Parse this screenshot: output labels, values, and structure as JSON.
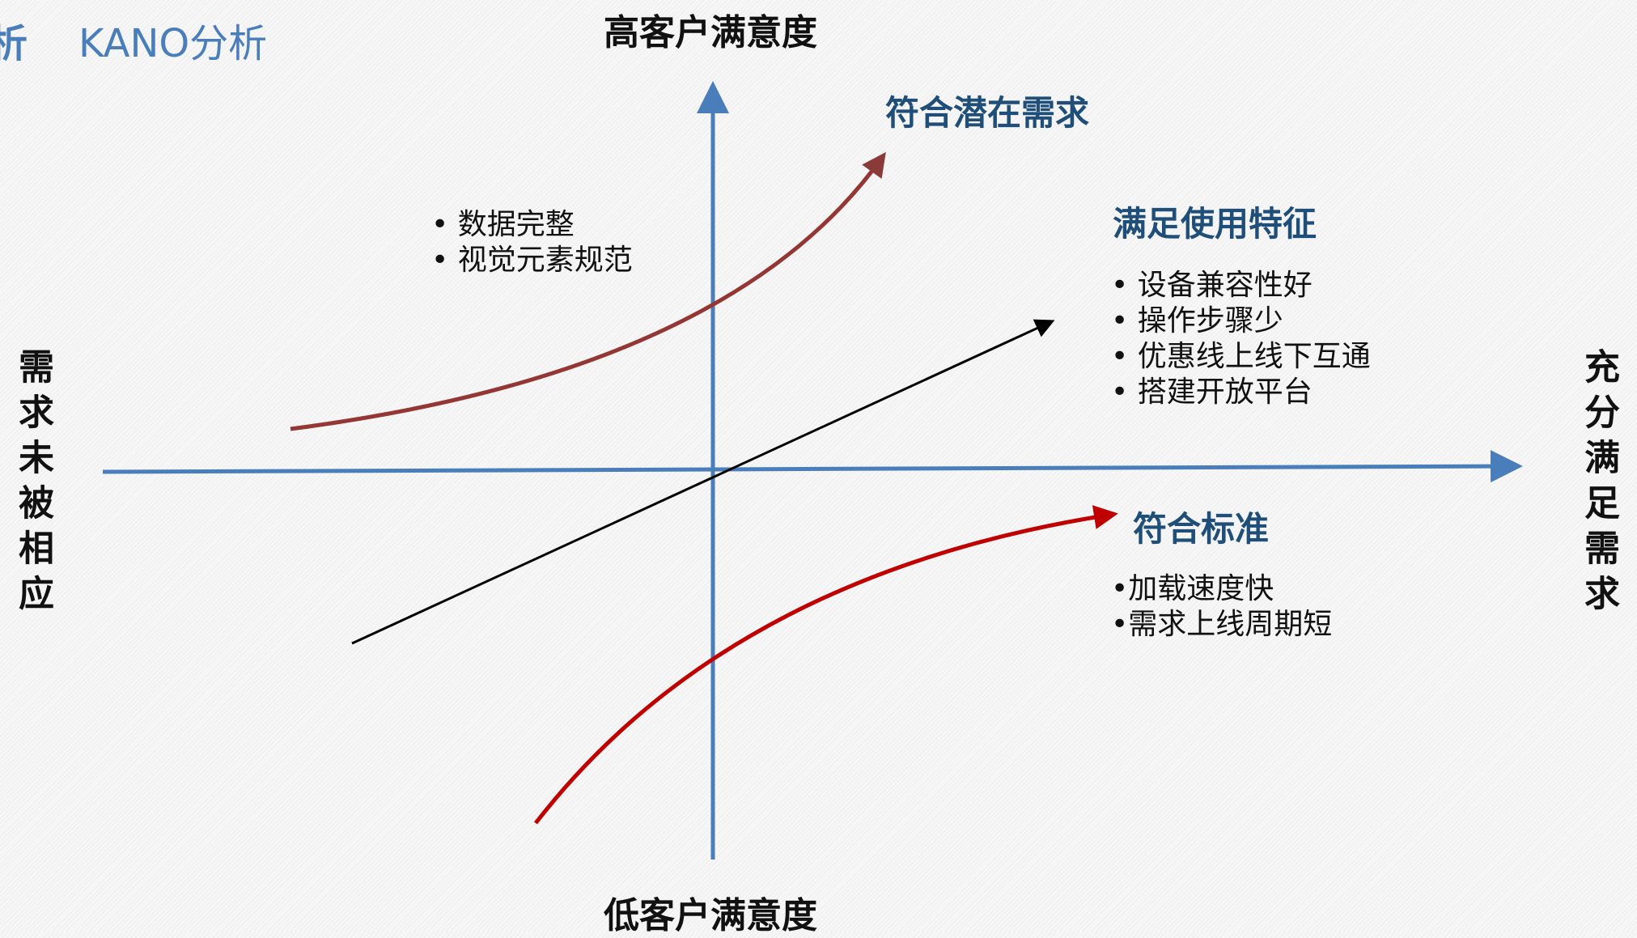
{
  "header": {
    "section": "析",
    "title": "KANO分析"
  },
  "axes": {
    "top": "高客户满意度",
    "bottom": "低客户满意度",
    "left": "需求未被相应",
    "right": "充分满足需求"
  },
  "groups": [
    {
      "label": "符合潜在需求",
      "items": [
        "数据完整",
        "视觉元素规范"
      ]
    },
    {
      "label": "满足使用特征",
      "items": [
        "设备兼容性好",
        "操作步骤少",
        "优惠线上线下互通",
        "搭建开放平台"
      ]
    },
    {
      "label": "符合标准",
      "items": [
        "加载速度快",
        "需求上线周期短"
      ]
    }
  ]
}
